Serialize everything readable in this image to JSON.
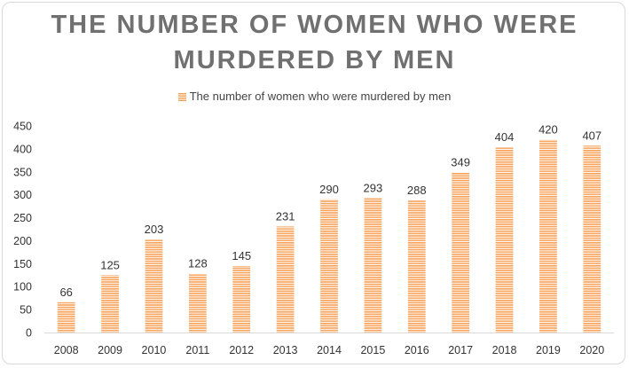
{
  "chart_data": {
    "type": "bar",
    "title_line1": "THE NUMBER OF WOMEN WHO WERE",
    "title_line2": "MURDERED BY MEN",
    "categories": [
      "2008",
      "2009",
      "2010",
      "2011",
      "2012",
      "2013",
      "2014",
      "2015",
      "2016",
      "2017",
      "2018",
      "2019",
      "2020"
    ],
    "series": [
      {
        "name": "The number of women who were murdered by men",
        "values": [
          66,
          125,
          203,
          128,
          145,
          231,
          290,
          293,
          288,
          349,
          404,
          420,
          407
        ],
        "color": "#f7a25a"
      }
    ],
    "ylim": [
      0,
      450
    ],
    "yticks": [
      0,
      50,
      100,
      150,
      200,
      250,
      300,
      350,
      400,
      450
    ],
    "legend_position": "top",
    "grid": false,
    "data_labels": true
  }
}
